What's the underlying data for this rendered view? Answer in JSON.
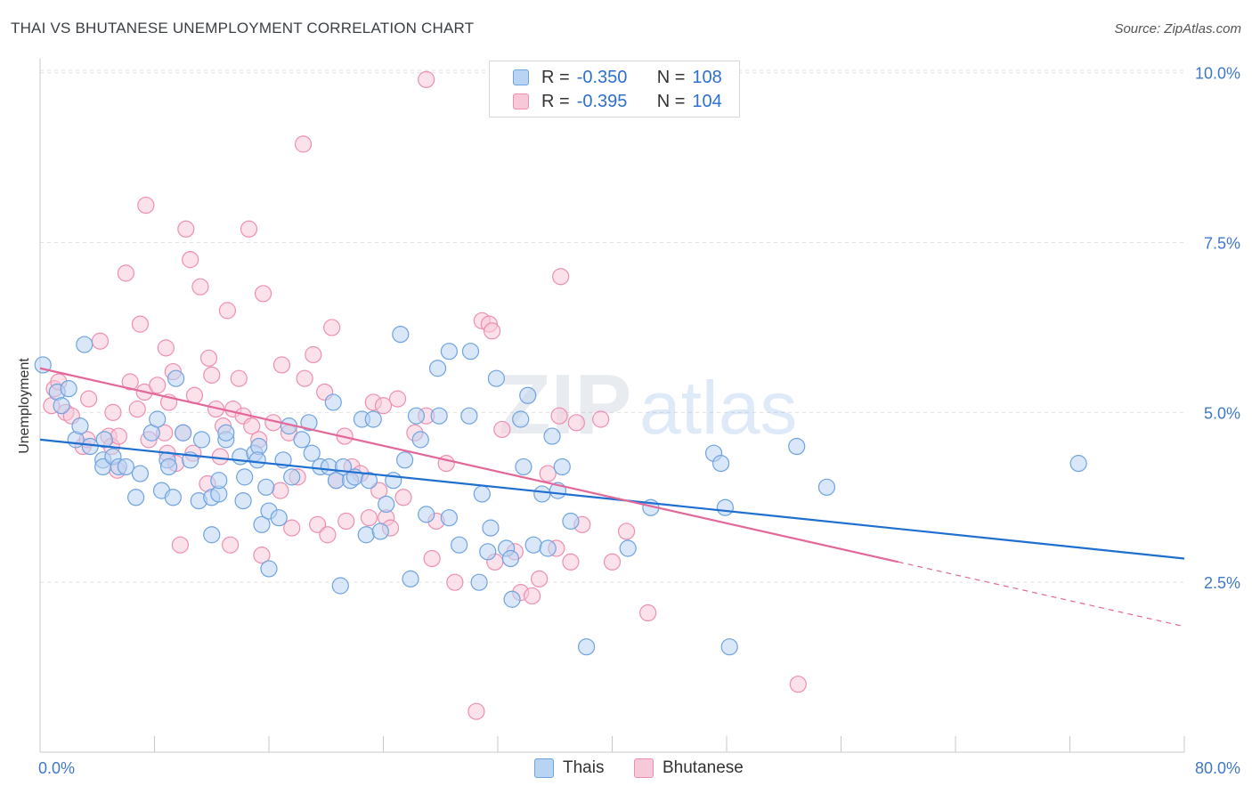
{
  "title": "THAI VS BHUTANESE UNEMPLOYMENT CORRELATION CHART",
  "source": "Source: ZipAtlas.com",
  "watermark": {
    "zip": "ZIP",
    "atlas": "atlas"
  },
  "colors": {
    "thais": "#6fa3e0",
    "thais_fill": "#b9d3f2",
    "thais_line": "#1e6fd0",
    "bhutanese": "#ee8fb0",
    "bhutanese_fill": "#f7c9d8",
    "bhutanese_line": "#e4679a",
    "axis_text": "#3f78c9"
  },
  "legend": {
    "rows": [
      {
        "r_label": "R =",
        "r_value": "-0.350",
        "n_label": "N =",
        "n_value": "108"
      },
      {
        "r_label": "R =",
        "r_value": "-0.395",
        "n_label": "N =",
        "n_value": "104"
      }
    ]
  },
  "bottom_legend": {
    "thais": "Thais",
    "bhutanese": "Bhutanese"
  },
  "chart_data": {
    "type": "scatter",
    "title": "THAI VS BHUTANESE UNEMPLOYMENT CORRELATION CHART",
    "xlabel": "",
    "ylabel": "Unemployment",
    "xlim": [
      0,
      80
    ],
    "ylim": [
      0,
      10.0
    ],
    "x_tick_labels": [
      "0.0%",
      "80.0%"
    ],
    "y_ticks": [
      2.5,
      5.0,
      7.5,
      10.0
    ],
    "y_tick_labels": [
      "2.5%",
      "5.0%",
      "7.5%",
      "10.0%"
    ],
    "grid": true,
    "legend_position": "top-center",
    "series": [
      {
        "name": "Thais",
        "r": -0.35,
        "n": 108,
        "trend": {
          "x": [
            0,
            80
          ],
          "y": [
            4.6,
            2.85
          ]
        },
        "points": [
          [
            0.2,
            5.7
          ],
          [
            1.2,
            5.3
          ],
          [
            1.5,
            5.1
          ],
          [
            2.0,
            5.35
          ],
          [
            3.1,
            6.0
          ],
          [
            2.5,
            4.6
          ],
          [
            2.8,
            4.8
          ],
          [
            3.5,
            4.5
          ],
          [
            4.5,
            4.6
          ],
          [
            4.4,
            4.3
          ],
          [
            4.4,
            4.2
          ],
          [
            5.1,
            4.35
          ],
          [
            5.5,
            4.2
          ],
          [
            6.0,
            4.2
          ],
          [
            7.0,
            4.1
          ],
          [
            6.7,
            3.75
          ],
          [
            7.8,
            4.7
          ],
          [
            8.2,
            4.9
          ],
          [
            8.5,
            3.85
          ],
          [
            8.9,
            4.3
          ],
          [
            9.3,
            3.75
          ],
          [
            9.0,
            4.2
          ],
          [
            9.5,
            5.5
          ],
          [
            10.0,
            4.7
          ],
          [
            10.5,
            4.3
          ],
          [
            11.1,
            3.7
          ],
          [
            11.3,
            4.6
          ],
          [
            12.0,
            3.75
          ],
          [
            12.0,
            3.2
          ],
          [
            12.5,
            3.8
          ],
          [
            12.5,
            4.0
          ],
          [
            13.0,
            4.6
          ],
          [
            13.0,
            4.7
          ],
          [
            14.0,
            4.35
          ],
          [
            14.2,
            3.7
          ],
          [
            14.3,
            4.05
          ],
          [
            15.0,
            4.4
          ],
          [
            15.3,
            4.5
          ],
          [
            15.2,
            4.3
          ],
          [
            15.5,
            3.35
          ],
          [
            15.8,
            3.9
          ],
          [
            16.0,
            3.55
          ],
          [
            16.0,
            2.7
          ],
          [
            16.7,
            3.45
          ],
          [
            17.0,
            4.3
          ],
          [
            17.4,
            4.8
          ],
          [
            17.6,
            4.05
          ],
          [
            18.3,
            4.6
          ],
          [
            18.8,
            4.85
          ],
          [
            19.0,
            4.4
          ],
          [
            19.6,
            4.2
          ],
          [
            20.2,
            4.2
          ],
          [
            20.5,
            5.15
          ],
          [
            20.7,
            4.0
          ],
          [
            21.0,
            2.45
          ],
          [
            21.2,
            4.2
          ],
          [
            21.7,
            4.0
          ],
          [
            22.0,
            4.05
          ],
          [
            22.5,
            4.9
          ],
          [
            22.8,
            3.2
          ],
          [
            23.0,
            4.0
          ],
          [
            23.3,
            4.9
          ],
          [
            23.8,
            3.25
          ],
          [
            24.2,
            3.65
          ],
          [
            24.7,
            4.0
          ],
          [
            25.2,
            6.15
          ],
          [
            25.5,
            4.3
          ],
          [
            25.9,
            2.55
          ],
          [
            26.3,
            4.95
          ],
          [
            26.6,
            4.6
          ],
          [
            27.0,
            3.5
          ],
          [
            27.8,
            5.65
          ],
          [
            27.9,
            4.95
          ],
          [
            28.6,
            3.45
          ],
          [
            28.6,
            5.9
          ],
          [
            29.3,
            3.05
          ],
          [
            30.0,
            4.95
          ],
          [
            30.1,
            5.9
          ],
          [
            30.7,
            2.5
          ],
          [
            30.9,
            3.8
          ],
          [
            31.3,
            2.95
          ],
          [
            31.5,
            3.3
          ],
          [
            31.9,
            5.5
          ],
          [
            32.6,
            3.0
          ],
          [
            32.9,
            2.85
          ],
          [
            33.0,
            2.25
          ],
          [
            33.6,
            4.9
          ],
          [
            33.8,
            4.2
          ],
          [
            34.1,
            5.25
          ],
          [
            34.5,
            3.05
          ],
          [
            35.1,
            3.8
          ],
          [
            35.5,
            3.0
          ],
          [
            35.8,
            4.65
          ],
          [
            36.2,
            3.85
          ],
          [
            36.5,
            4.2
          ],
          [
            37.1,
            3.4
          ],
          [
            38.2,
            1.55
          ],
          [
            41.1,
            3.0
          ],
          [
            42.7,
            3.6
          ],
          [
            47.1,
            4.4
          ],
          [
            47.6,
            4.25
          ],
          [
            47.9,
            3.6
          ],
          [
            48.2,
            1.55
          ],
          [
            52.9,
            4.5
          ],
          [
            55.0,
            3.9
          ],
          [
            72.6,
            4.25
          ]
        ]
      },
      {
        "name": "Bhutanese",
        "r": -0.395,
        "n": 104,
        "trend": {
          "x": [
            0,
            60
          ],
          "y": [
            5.65,
            2.8
          ]
        },
        "trend_dashed": {
          "x": [
            60,
            80
          ],
          "y": [
            2.8,
            1.85
          ]
        },
        "points": [
          [
            0.8,
            5.1
          ],
          [
            1.0,
            5.35
          ],
          [
            1.3,
            5.45
          ],
          [
            1.8,
            5.0
          ],
          [
            2.2,
            4.95
          ],
          [
            3.0,
            4.5
          ],
          [
            3.3,
            4.6
          ],
          [
            3.4,
            5.2
          ],
          [
            4.2,
            6.05
          ],
          [
            4.8,
            4.65
          ],
          [
            5.0,
            4.5
          ],
          [
            5.1,
            5.0
          ],
          [
            5.4,
            4.15
          ],
          [
            5.5,
            4.65
          ],
          [
            6.0,
            7.05
          ],
          [
            6.3,
            5.45
          ],
          [
            6.8,
            5.05
          ],
          [
            7.0,
            6.3
          ],
          [
            7.3,
            5.3
          ],
          [
            7.4,
            8.05
          ],
          [
            7.6,
            4.6
          ],
          [
            8.2,
            5.4
          ],
          [
            8.7,
            4.7
          ],
          [
            8.8,
            5.95
          ],
          [
            8.9,
            4.4
          ],
          [
            9.0,
            5.15
          ],
          [
            9.3,
            5.6
          ],
          [
            9.5,
            4.25
          ],
          [
            9.8,
            3.05
          ],
          [
            10.0,
            4.7
          ],
          [
            10.2,
            7.7
          ],
          [
            10.5,
            7.25
          ],
          [
            10.7,
            4.4
          ],
          [
            10.8,
            5.25
          ],
          [
            11.2,
            6.85
          ],
          [
            11.7,
            3.95
          ],
          [
            11.8,
            5.8
          ],
          [
            12.0,
            5.55
          ],
          [
            12.3,
            5.05
          ],
          [
            12.6,
            4.35
          ],
          [
            12.8,
            4.8
          ],
          [
            13.1,
            6.5
          ],
          [
            13.3,
            3.05
          ],
          [
            13.5,
            5.05
          ],
          [
            13.9,
            5.5
          ],
          [
            14.2,
            4.95
          ],
          [
            14.6,
            7.7
          ],
          [
            14.8,
            4.8
          ],
          [
            15.3,
            4.6
          ],
          [
            15.5,
            2.9
          ],
          [
            15.6,
            6.75
          ],
          [
            16.3,
            4.85
          ],
          [
            16.8,
            3.85
          ],
          [
            16.9,
            5.7
          ],
          [
            17.4,
            4.7
          ],
          [
            17.6,
            3.3
          ],
          [
            18.0,
            4.05
          ],
          [
            18.4,
            8.95
          ],
          [
            18.5,
            5.5
          ],
          [
            19.1,
            5.85
          ],
          [
            19.4,
            3.35
          ],
          [
            19.9,
            5.3
          ],
          [
            20.1,
            3.2
          ],
          [
            20.4,
            6.25
          ],
          [
            20.7,
            4.0
          ],
          [
            21.3,
            4.65
          ],
          [
            21.4,
            3.4
          ],
          [
            21.8,
            4.2
          ],
          [
            22.4,
            4.1
          ],
          [
            23.0,
            3.45
          ],
          [
            23.3,
            5.15
          ],
          [
            23.7,
            3.85
          ],
          [
            24.0,
            5.1
          ],
          [
            24.2,
            3.45
          ],
          [
            24.5,
            3.3
          ],
          [
            25.0,
            5.2
          ],
          [
            25.4,
            3.75
          ],
          [
            26.2,
            4.7
          ],
          [
            27.0,
            4.95
          ],
          [
            27.0,
            9.9
          ],
          [
            27.4,
            2.85
          ],
          [
            27.7,
            3.4
          ],
          [
            28.4,
            4.25
          ],
          [
            29.0,
            2.5
          ],
          [
            30.5,
            0.6
          ],
          [
            30.9,
            6.35
          ],
          [
            31.4,
            6.3
          ],
          [
            31.6,
            6.2
          ],
          [
            31.8,
            2.8
          ],
          [
            32.3,
            4.75
          ],
          [
            33.2,
            2.95
          ],
          [
            33.6,
            2.35
          ],
          [
            34.4,
            2.3
          ],
          [
            34.9,
            2.55
          ],
          [
            35.5,
            4.1
          ],
          [
            36.1,
            3.0
          ],
          [
            36.3,
            4.95
          ],
          [
            36.4,
            7.0
          ],
          [
            37.1,
            2.8
          ],
          [
            37.5,
            4.85
          ],
          [
            37.9,
            3.35
          ],
          [
            39.2,
            4.9
          ],
          [
            40.0,
            2.8
          ],
          [
            41.0,
            3.25
          ],
          [
            42.5,
            2.05
          ],
          [
            53.0,
            1.0
          ]
        ]
      }
    ]
  }
}
